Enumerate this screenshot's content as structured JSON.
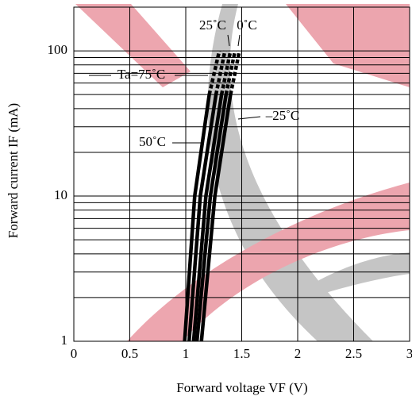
{
  "chart_data": {
    "type": "line",
    "x_label": "Forward voltage VF (V)",
    "y_label": "Forward current IF (mA)",
    "xlim": [
      0,
      3
    ],
    "xticks": [
      0,
      0.5,
      1,
      1.5,
      2,
      2.5,
      3
    ],
    "ylim": [
      1,
      200
    ],
    "log_y": true,
    "yticks": [
      1,
      10,
      100
    ],
    "y_gridlines": [
      1,
      2,
      3,
      4,
      5,
      6,
      7,
      8,
      9,
      10,
      20,
      30,
      40,
      50,
      60,
      70,
      80,
      90,
      100,
      200
    ],
    "grid": true,
    "dashed_above": 50,
    "series": [
      {
        "name": "Ta=75˚C",
        "color": "#000000",
        "x": [
          0.99,
          1.08,
          1.21,
          1.3
        ],
        "values": [
          1,
          10,
          50,
          100
        ]
      },
      {
        "name": "50˚C",
        "color": "#000000",
        "x": [
          1.03,
          1.13,
          1.27,
          1.35
        ],
        "values": [
          1,
          10,
          50,
          100
        ]
      },
      {
        "name": "25˚C",
        "color": "#000000",
        "x": [
          1.07,
          1.18,
          1.32,
          1.4
        ],
        "values": [
          1,
          10,
          50,
          100
        ]
      },
      {
        "name": "0˚C",
        "color": "#000000",
        "x": [
          1.1,
          1.22,
          1.36,
          1.44
        ],
        "values": [
          1,
          10,
          50,
          100
        ]
      },
      {
        "name": "–25˚C",
        "color": "#000000",
        "x": [
          1.14,
          1.26,
          1.4,
          1.48
        ],
        "values": [
          1,
          10,
          50,
          100
        ]
      }
    ]
  }
}
